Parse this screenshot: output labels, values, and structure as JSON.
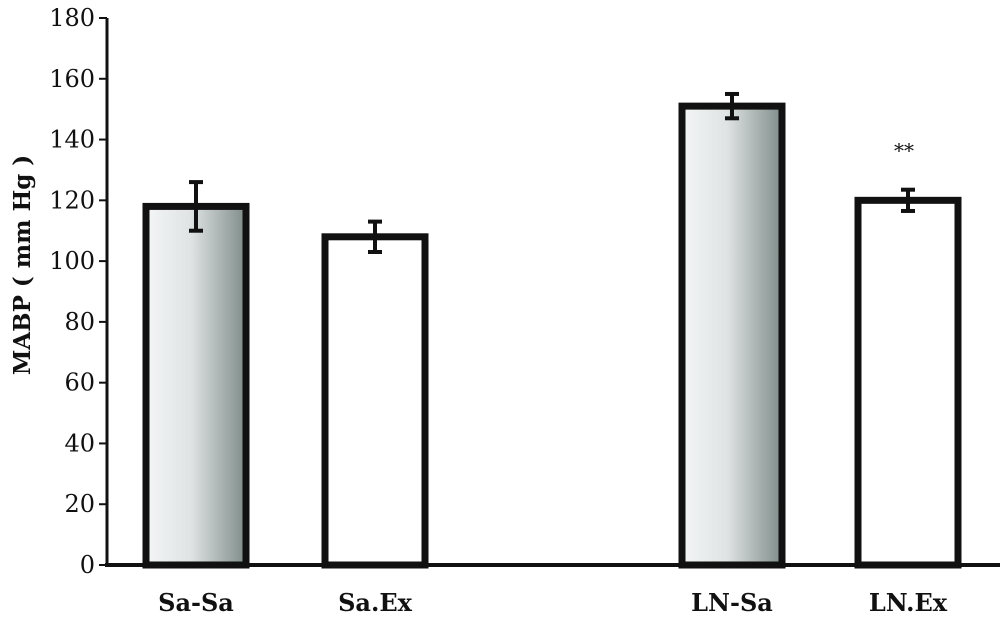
{
  "chart_data": {
    "type": "bar",
    "title": "",
    "xlabel": "",
    "ylabel": "MABP ( mm Hg )",
    "ylim": [
      0,
      180
    ],
    "yticks": [
      0,
      20,
      40,
      60,
      80,
      100,
      120,
      140,
      160,
      180
    ],
    "grid": false,
    "categories": [
      "Sa-Sa",
      "Sa.Ex",
      "LN-Sa",
      "LN.Ex"
    ],
    "values": [
      118,
      108,
      151,
      120
    ],
    "errors": [
      8,
      5,
      4,
      3.5
    ],
    "fills": [
      "gradient",
      "white",
      "gradient",
      "white"
    ],
    "annotations": [
      "",
      "",
      "",
      "**"
    ],
    "colors": {
      "axis": "#111111",
      "bar_edge": "#111111",
      "gradient_start": "#f4f6f6",
      "gradient_end": "#7f8c8a"
    }
  }
}
